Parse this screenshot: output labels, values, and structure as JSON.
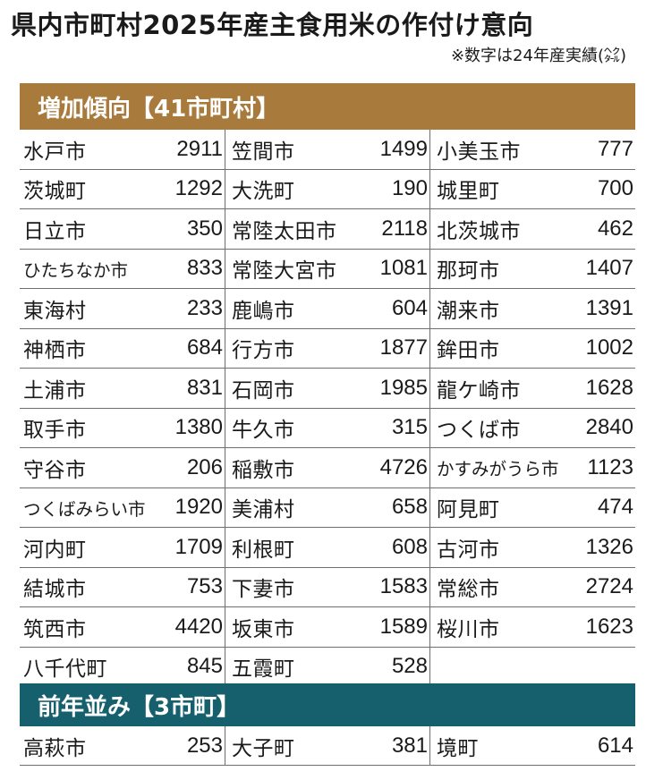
{
  "title": "県内市町村2025年産主食用米の作付け意向",
  "note": "※数字は24年産実績(㌶)",
  "sections": [
    {
      "header": "増加傾向【41市町村】",
      "rows": [
        [
          {
            "name": "水戸市",
            "value": "2911"
          },
          {
            "name": "笠間市",
            "value": "1499"
          },
          {
            "name": "小美玉市",
            "value": "777"
          }
        ],
        [
          {
            "name": "茨城町",
            "value": "1292"
          },
          {
            "name": "大洗町",
            "value": "190"
          },
          {
            "name": "城里町",
            "value": "700"
          }
        ],
        [
          {
            "name": "日立市",
            "value": "350"
          },
          {
            "name": "常陸太田市",
            "value": "2118"
          },
          {
            "name": "北茨城市",
            "value": "462"
          }
        ],
        [
          {
            "name": "ひたちなか市",
            "value": "833"
          },
          {
            "name": "常陸大宮市",
            "value": "1081"
          },
          {
            "name": "那珂市",
            "value": "1407"
          }
        ],
        [
          {
            "name": "東海村",
            "value": "233"
          },
          {
            "name": "鹿嶋市",
            "value": "604"
          },
          {
            "name": "潮来市",
            "value": "1391"
          }
        ],
        [
          {
            "name": "神栖市",
            "value": "684"
          },
          {
            "name": "行方市",
            "value": "1877"
          },
          {
            "name": "鉾田市",
            "value": "1002"
          }
        ],
        [
          {
            "name": "土浦市",
            "value": "831"
          },
          {
            "name": "石岡市",
            "value": "1985"
          },
          {
            "name": "龍ケ崎市",
            "value": "1628"
          }
        ],
        [
          {
            "name": "取手市",
            "value": "1380"
          },
          {
            "name": "牛久市",
            "value": "315"
          },
          {
            "name": "つくば市",
            "value": "2840"
          }
        ],
        [
          {
            "name": "守谷市",
            "value": "206"
          },
          {
            "name": "稲敷市",
            "value": "4726"
          },
          {
            "name": "かすみがうら市",
            "value": "1123"
          }
        ],
        [
          {
            "name": "つくばみらい市",
            "value": "1920"
          },
          {
            "name": "美浦村",
            "value": "658"
          },
          {
            "name": "阿見町",
            "value": "474"
          }
        ],
        [
          {
            "name": "河内町",
            "value": "1709"
          },
          {
            "name": "利根町",
            "value": "608"
          },
          {
            "name": "古河市",
            "value": "1326"
          }
        ],
        [
          {
            "name": "結城市",
            "value": "753"
          },
          {
            "name": "下妻市",
            "value": "1583"
          },
          {
            "name": "常総市",
            "value": "2724"
          }
        ],
        [
          {
            "name": "筑西市",
            "value": "4420"
          },
          {
            "name": "坂東市",
            "value": "1589"
          },
          {
            "name": "桜川市",
            "value": "1623"
          }
        ],
        [
          {
            "name": "八千代町",
            "value": "845"
          },
          {
            "name": "五霞町",
            "value": "528"
          },
          {
            "name": "",
            "value": ""
          }
        ]
      ]
    },
    {
      "header": "前年並み【3市町】",
      "rows": [
        [
          {
            "name": "高萩市",
            "value": "253"
          },
          {
            "name": "大子町",
            "value": "381"
          },
          {
            "name": "境町",
            "value": "614"
          }
        ]
      ]
    }
  ]
}
